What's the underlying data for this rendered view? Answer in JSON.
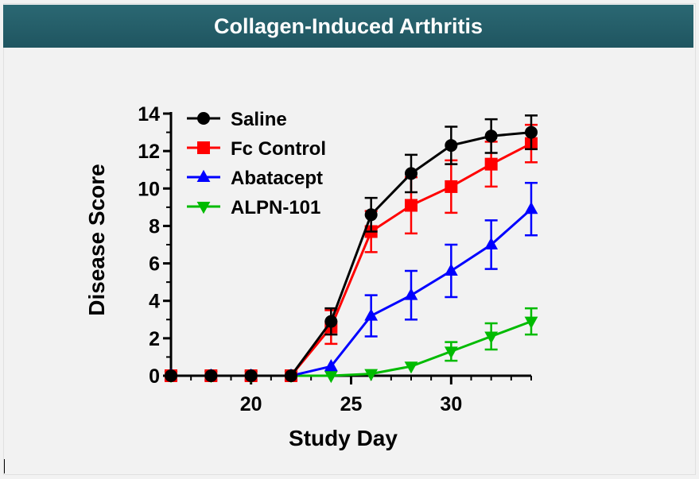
{
  "header": {
    "title": "Collagen-Induced Arthritis"
  },
  "chart_data": {
    "type": "line",
    "title": "Collagen-Induced Arthritis",
    "xlabel": "Study Day",
    "ylabel": "Disease Score",
    "xlim": [
      16,
      34
    ],
    "ylim": [
      0,
      14
    ],
    "xticks": [
      20,
      25,
      30
    ],
    "yticks": [
      0,
      2,
      4,
      6,
      8,
      10,
      12,
      14
    ],
    "legend_position": "top-left",
    "series": [
      {
        "name": "Saline",
        "color": "#000000",
        "marker": "circle",
        "x": [
          16,
          18,
          20,
          22,
          24,
          26,
          28,
          30,
          32,
          34
        ],
        "y": [
          0,
          0,
          0,
          0,
          2.9,
          8.6,
          10.8,
          12.3,
          12.8,
          13.0
        ],
        "err": [
          0,
          0,
          0,
          0,
          0.7,
          0.9,
          1.0,
          1.0,
          0.9,
          0.9
        ]
      },
      {
        "name": "Fc Control",
        "color": "#ff0000",
        "marker": "square",
        "x": [
          16,
          18,
          20,
          22,
          24,
          26,
          28,
          30,
          32,
          34
        ],
        "y": [
          0,
          0,
          0,
          0,
          2.6,
          7.7,
          9.1,
          10.1,
          11.3,
          12.4
        ],
        "err": [
          0,
          0,
          0,
          0,
          0.9,
          1.1,
          1.5,
          1.4,
          1.2,
          1.0
        ]
      },
      {
        "name": "Abatacept",
        "color": "#0000ff",
        "marker": "triangle-up",
        "x": [
          16,
          18,
          20,
          22,
          24,
          26,
          28,
          30,
          32,
          34
        ],
        "y": [
          0,
          0,
          0,
          0,
          0.5,
          3.2,
          4.3,
          5.6,
          7.0,
          8.9
        ],
        "err": [
          0,
          0,
          0,
          0,
          0,
          1.1,
          1.3,
          1.4,
          1.3,
          1.4
        ]
      },
      {
        "name": "ALPN-101",
        "color": "#00bb00",
        "marker": "triangle-down",
        "x": [
          16,
          18,
          20,
          22,
          24,
          26,
          28,
          30,
          32,
          34
        ],
        "y": [
          0,
          0,
          0,
          0,
          0,
          0.1,
          0.5,
          1.3,
          2.1,
          2.9
        ],
        "err": [
          0,
          0,
          0,
          0,
          0,
          0,
          0,
          0.5,
          0.7,
          0.7
        ]
      }
    ]
  }
}
